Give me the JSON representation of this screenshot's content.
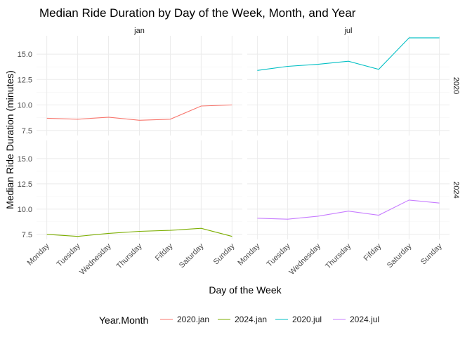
{
  "chart_data": {
    "type": "line",
    "title": "Median Ride Duration by Day of the Week, Month, and Year",
    "xlabel": "Day of the Week",
    "ylabel": "Median Ride Duration (minutes)",
    "categories": [
      "Monday",
      "Tuesday",
      "Wednesday",
      "Thursday",
      "Fifday",
      "Saturday",
      "Sunday"
    ],
    "yticks": [
      "7.5",
      "10.0",
      "12.5",
      "15.0"
    ],
    "ylim": [
      7.0,
      16.8
    ],
    "facet_cols": [
      "jan",
      "jul"
    ],
    "facet_rows": [
      "2020",
      "2024"
    ],
    "legend": {
      "title": "Year.Month",
      "position": "bottom"
    },
    "series": [
      {
        "name": "2020.jan",
        "col": "jan",
        "row": "2020",
        "color": "#F8766D",
        "values": [
          8.7,
          8.6,
          8.8,
          8.5,
          8.6,
          9.9,
          10.0
        ]
      },
      {
        "name": "2024.jan",
        "col": "jan",
        "row": "2024",
        "color": "#7CAE00",
        "values": [
          7.5,
          7.3,
          7.6,
          7.8,
          7.9,
          8.1,
          7.3
        ]
      },
      {
        "name": "2020.jul",
        "col": "jul",
        "row": "2020",
        "color": "#00BFC4",
        "values": [
          13.4,
          13.8,
          14.0,
          14.3,
          13.5,
          16.6,
          16.6
        ]
      },
      {
        "name": "2024.jul",
        "col": "jul",
        "row": "2024",
        "color": "#C77CFF",
        "values": [
          9.1,
          9.0,
          9.3,
          9.8,
          9.4,
          10.9,
          10.6
        ]
      }
    ]
  }
}
